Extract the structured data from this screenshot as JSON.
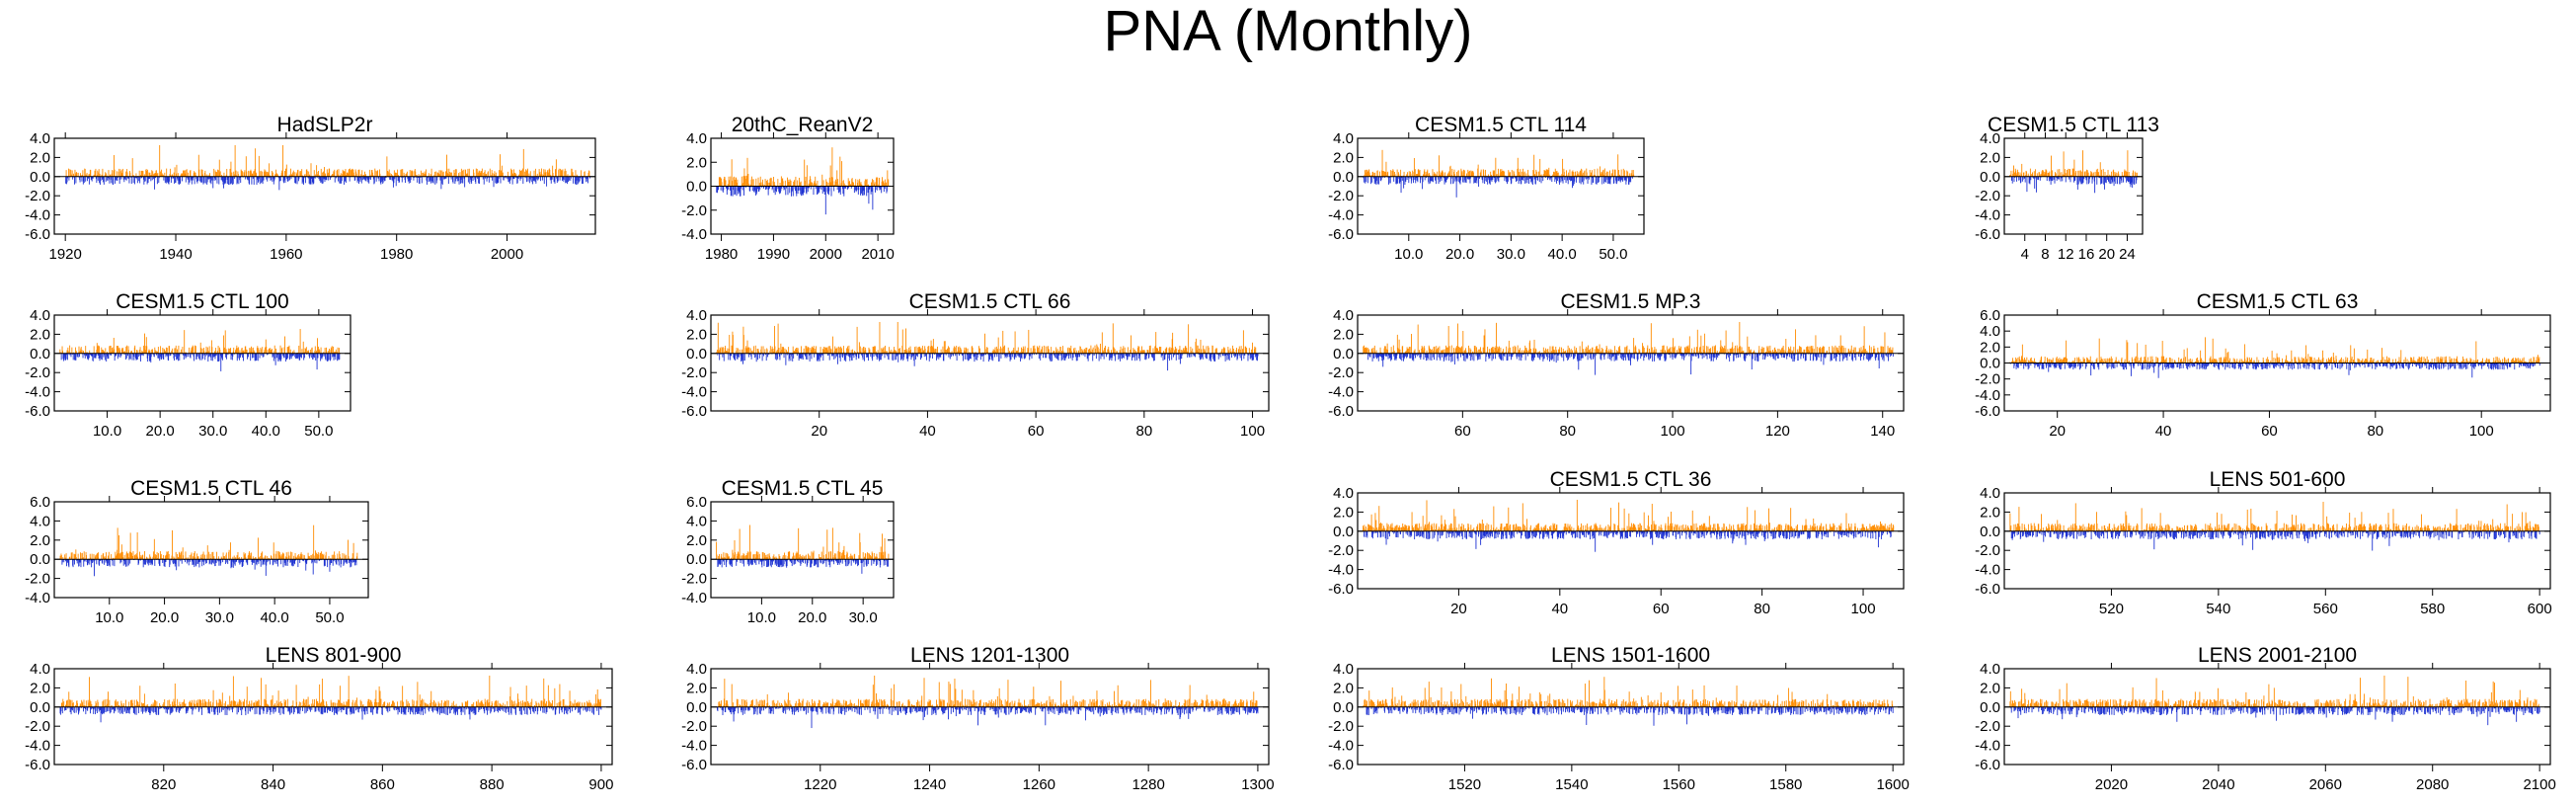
{
  "title": "PNA (Monthly)",
  "colors": {
    "positive": "#ff8c00",
    "negative": "#1e32d2",
    "axis": "#000000",
    "zero_line": "#000000"
  },
  "chart_data": [
    {
      "type": "bar",
      "title": "HadSLP2r",
      "x_start": 1920.0,
      "x_end": 2015.0,
      "xlim": [
        1918,
        2016
      ],
      "xticks": [
        1920,
        1940,
        1960,
        1980,
        2000
      ],
      "xtick_labels": [
        "1920",
        "1940",
        "1960",
        "1980",
        "2000"
      ],
      "ylim": [
        -6,
        4
      ],
      "yticks": [
        -6,
        -4,
        -2,
        0,
        2,
        4
      ],
      "ytick_labels": [
        "-6.0",
        "-4.0",
        "-2.0",
        "0.0",
        "2.0",
        "4.0"
      ]
    },
    {
      "type": "bar",
      "title": "20thC_ReanV2",
      "x_start": 1979.0,
      "x_end": 2012.0,
      "xlim": [
        1978,
        2013
      ],
      "xticks": [
        1980,
        1990,
        2000,
        2010
      ],
      "xtick_labels": [
        "1980",
        "1990",
        "2000",
        "2010"
      ],
      "ylim": [
        -4,
        4
      ],
      "yticks": [
        -4,
        -2,
        0,
        2,
        4
      ],
      "ytick_labels": [
        "-4.0",
        "-2.0",
        "0.0",
        "2.0",
        "4.0"
      ]
    },
    {
      "type": "bar",
      "title": "CESM1.5 CTL 114",
      "x_start": 1.0,
      "x_end": 54.0,
      "xlim": [
        0,
        56
      ],
      "xticks": [
        10,
        20,
        30,
        40,
        50
      ],
      "xtick_labels": [
        "10.0",
        "20.0",
        "30.0",
        "40.0",
        "50.0"
      ],
      "ylim": [
        -6,
        4
      ],
      "yticks": [
        -6,
        -4,
        -2,
        0,
        2,
        4
      ],
      "ytick_labels": [
        "-6.0",
        "-4.0",
        "-2.0",
        "0.0",
        "2.0",
        "4.0"
      ]
    },
    {
      "type": "bar",
      "title": "CESM1.5 CTL 113",
      "x_start": 1.0,
      "x_end": 26.0,
      "xlim": [
        0,
        27
      ],
      "xticks": [
        4,
        8,
        12,
        16,
        20,
        24
      ],
      "xtick_labels": [
        "4",
        "8",
        "12",
        "16",
        "20",
        "24"
      ],
      "ylim": [
        -6,
        4
      ],
      "yticks": [
        -6,
        -4,
        -2,
        0,
        2,
        4
      ],
      "ytick_labels": [
        "-6.0",
        "-4.0",
        "-2.0",
        "0.0",
        "2.0",
        "4.0"
      ]
    },
    {
      "type": "bar",
      "title": "CESM1.5 CTL 100",
      "x_start": 1.0,
      "x_end": 54.0,
      "xlim": [
        0,
        56
      ],
      "xticks": [
        10,
        20,
        30,
        40,
        50
      ],
      "xtick_labels": [
        "10.0",
        "20.0",
        "30.0",
        "40.0",
        "50.0"
      ],
      "ylim": [
        -6,
        4
      ],
      "yticks": [
        -6,
        -4,
        -2,
        0,
        2,
        4
      ],
      "ytick_labels": [
        "-6.0",
        "-4.0",
        "-2.0",
        "0.0",
        "2.0",
        "4.0"
      ]
    },
    {
      "type": "bar",
      "title": "CESM1.5 CTL 66",
      "x_start": 1.0,
      "x_end": 101.0,
      "xlim": [
        0,
        103
      ],
      "xticks": [
        20,
        40,
        60,
        80,
        100
      ],
      "xtick_labels": [
        "20",
        "40",
        "60",
        "80",
        "100"
      ],
      "ylim": [
        -6,
        4
      ],
      "yticks": [
        -6,
        -4,
        -2,
        0,
        2,
        4
      ],
      "ytick_labels": [
        "-6.0",
        "-4.0",
        "-2.0",
        "0.0",
        "2.0",
        "4.0"
      ]
    },
    {
      "type": "bar",
      "title": "CESM1.5 MP.3",
      "x_start": 41.0,
      "x_end": 142.0,
      "xlim": [
        40,
        144
      ],
      "xticks": [
        60,
        80,
        100,
        120,
        140
      ],
      "xtick_labels": [
        "60",
        "80",
        "100",
        "120",
        "140"
      ],
      "ylim": [
        -6,
        4
      ],
      "yticks": [
        -6,
        -4,
        -2,
        0,
        2,
        4
      ],
      "ytick_labels": [
        "-6.0",
        "-4.0",
        "-2.0",
        "0.0",
        "2.0",
        "4.0"
      ]
    },
    {
      "type": "bar",
      "title": "CESM1.5 CTL 63",
      "x_start": 11.0,
      "x_end": 111.0,
      "xlim": [
        10,
        113
      ],
      "xticks": [
        20,
        40,
        60,
        80,
        100
      ],
      "xtick_labels": [
        "20",
        "40",
        "60",
        "80",
        "100"
      ],
      "ylim": [
        -6,
        6
      ],
      "yticks": [
        -6,
        -4,
        -2,
        0,
        2,
        4,
        6
      ],
      "ytick_labels": [
        "-6.0",
        "-4.0",
        "-2.0",
        "0.0",
        "2.0",
        "4.0",
        "6.0"
      ]
    },
    {
      "type": "bar",
      "title": "CESM1.5 CTL 46",
      "x_start": 1.0,
      "x_end": 55.0,
      "xlim": [
        0,
        57
      ],
      "xticks": [
        10,
        20,
        30,
        40,
        50
      ],
      "xtick_labels": [
        "10.0",
        "20.0",
        "30.0",
        "40.0",
        "50.0"
      ],
      "ylim": [
        -4,
        6
      ],
      "yticks": [
        -4,
        -2,
        0,
        2,
        4,
        6
      ],
      "ytick_labels": [
        "-4.0",
        "-2.0",
        "0.0",
        "2.0",
        "4.0",
        "6.0"
      ]
    },
    {
      "type": "bar",
      "title": "CESM1.5 CTL 45",
      "x_start": 1.0,
      "x_end": 35.0,
      "xlim": [
        0,
        36
      ],
      "xticks": [
        10,
        20,
        30
      ],
      "xtick_labels": [
        "10.0",
        "20.0",
        "30.0"
      ],
      "ylim": [
        -4,
        6
      ],
      "yticks": [
        -4,
        -2,
        0,
        2,
        4,
        6
      ],
      "ytick_labels": [
        "-4.0",
        "-2.0",
        "0.0",
        "2.0",
        "4.0",
        "6.0"
      ]
    },
    {
      "type": "bar",
      "title": "CESM1.5 CTL 36",
      "x_start": 1.0,
      "x_end": 106.0,
      "xlim": [
        0,
        108
      ],
      "xticks": [
        20,
        40,
        60,
        80,
        100
      ],
      "xtick_labels": [
        "20",
        "40",
        "60",
        "80",
        "100"
      ],
      "ylim": [
        -6,
        4
      ],
      "yticks": [
        -6,
        -4,
        -2,
        0,
        2,
        4
      ],
      "ytick_labels": [
        "-6.0",
        "-4.0",
        "-2.0",
        "0.0",
        "2.0",
        "4.0"
      ]
    },
    {
      "type": "bar",
      "title": "LENS 501-600",
      "x_start": 501.0,
      "x_end": 600.0,
      "xlim": [
        500,
        602
      ],
      "xticks": [
        520,
        540,
        560,
        580,
        600
      ],
      "xtick_labels": [
        "520",
        "540",
        "560",
        "580",
        "600"
      ],
      "ylim": [
        -6,
        4
      ],
      "yticks": [
        -6,
        -4,
        -2,
        0,
        2,
        4
      ],
      "ytick_labels": [
        "-6.0",
        "-4.0",
        "-2.0",
        "0.0",
        "2.0",
        "4.0"
      ]
    },
    {
      "type": "bar",
      "title": "LENS 801-900",
      "x_start": 801.0,
      "x_end": 900.0,
      "xlim": [
        800,
        902
      ],
      "xticks": [
        820,
        840,
        860,
        880,
        900
      ],
      "xtick_labels": [
        "820",
        "840",
        "860",
        "880",
        "900"
      ],
      "ylim": [
        -6,
        4
      ],
      "yticks": [
        -6,
        -4,
        -2,
        0,
        2,
        4
      ],
      "ytick_labels": [
        "-6.0",
        "-4.0",
        "-2.0",
        "0.0",
        "2.0",
        "4.0"
      ]
    },
    {
      "type": "bar",
      "title": "LENS 1201-1300",
      "x_start": 1201.0,
      "x_end": 1300.0,
      "xlim": [
        1200,
        1302
      ],
      "xticks": [
        1220,
        1240,
        1260,
        1280,
        1300
      ],
      "xtick_labels": [
        "1220",
        "1240",
        "1260",
        "1280",
        "1300"
      ],
      "ylim": [
        -6,
        4
      ],
      "yticks": [
        -6,
        -4,
        -2,
        0,
        2,
        4
      ],
      "ytick_labels": [
        "-6.0",
        "-4.0",
        "-2.0",
        "0.0",
        "2.0",
        "4.0"
      ]
    },
    {
      "type": "bar",
      "title": "LENS 1501-1600",
      "x_start": 1501.0,
      "x_end": 1600.0,
      "xlim": [
        1500,
        1602
      ],
      "xticks": [
        1520,
        1540,
        1560,
        1580,
        1600
      ],
      "xtick_labels": [
        "1520",
        "1540",
        "1560",
        "1580",
        "1600"
      ],
      "ylim": [
        -6,
        4
      ],
      "yticks": [
        -6,
        -4,
        -2,
        0,
        2,
        4
      ],
      "ytick_labels": [
        "-6.0",
        "-4.0",
        "-2.0",
        "0.0",
        "2.0",
        "4.0"
      ]
    },
    {
      "type": "bar",
      "title": "LENS 2001-2100",
      "x_start": 2001.0,
      "x_end": 2100.0,
      "xlim": [
        2000,
        2102
      ],
      "xticks": [
        2020,
        2040,
        2060,
        2080,
        2100
      ],
      "xtick_labels": [
        "2020",
        "2040",
        "2060",
        "2080",
        "2100"
      ],
      "ylim": [
        -6,
        4
      ],
      "yticks": [
        -6,
        -4,
        -2,
        0,
        2,
        4
      ],
      "ytick_labels": [
        "-6.0",
        "-4.0",
        "-2.0",
        "0.0",
        "2.0",
        "4.0"
      ]
    }
  ]
}
